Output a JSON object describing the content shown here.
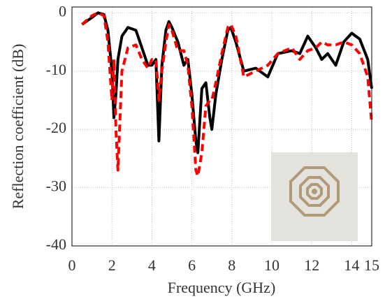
{
  "chart_data": {
    "type": "line",
    "xlabel": "Frequency (GHz)",
    "ylabel": "Reflection coefficient (dB)",
    "x": [
      0.5,
      1.0,
      1.3,
      1.6,
      1.8,
      2.0,
      2.1,
      2.2,
      2.3,
      2.5,
      2.8,
      3.2,
      3.5,
      3.8,
      4.0,
      4.2,
      4.35,
      4.5,
      4.7,
      4.85,
      5.0,
      5.3,
      5.6,
      5.8,
      6.0,
      6.2,
      6.3,
      6.5,
      6.7,
      6.9,
      7.0,
      7.2,
      7.5,
      7.8,
      7.95,
      8.2,
      8.6,
      9.2,
      9.8,
      10.3,
      11.0,
      11.4,
      11.8,
      12.2,
      12.5,
      12.8,
      13.2,
      13.6,
      14.0,
      14.4,
      14.8,
      15
    ],
    "series": [
      {
        "color": "#000000",
        "line_style": "solid",
        "values": [
          -2,
          -0.8,
          0,
          -0.3,
          -3,
          -10,
          -18,
          -14,
          -8,
          -4,
          -2.5,
          -3,
          -6,
          -9,
          -9,
          -8,
          -22,
          -9,
          -3,
          -1.5,
          -2.5,
          -5,
          -9,
          -8,
          -14,
          -22,
          -24,
          -13,
          -12,
          -18,
          -20,
          -14,
          -8,
          -3,
          -2.5,
          -5,
          -10,
          -9.5,
          -11,
          -7,
          -6.5,
          -7,
          -4,
          -6,
          -8,
          -7,
          -9,
          -5,
          -3.5,
          -4.5,
          -8,
          -13
        ]
      },
      {
        "color": "#ff0000",
        "line_style": "dashed",
        "values": [
          -2,
          -0.5,
          0,
          -0.5,
          -5,
          -15,
          -8,
          -20,
          -27,
          -10,
          -6,
          -5.5,
          -8,
          -9.5,
          -8,
          -8,
          -15,
          -10,
          -5,
          -2,
          -3,
          -6.5,
          -6.5,
          -9,
          -16,
          -27,
          -28,
          -24,
          -16,
          -15,
          -15,
          -12,
          -7,
          -2.5,
          -2,
          -4,
          -11,
          -10,
          -9,
          -7,
          -6,
          -8,
          -6.5,
          -6,
          -5,
          -5.5,
          -5.5,
          -5,
          -5.5,
          -7,
          -11,
          -19
        ]
      }
    ],
    "xlim": [
      0,
      15
    ],
    "xticks": [
      0,
      2,
      4,
      6,
      8,
      10,
      12,
      14,
      15
    ],
    "ylim": [
      -40,
      1
    ],
    "yticks": [
      0,
      -10,
      -20,
      -30,
      -40
    ],
    "grid": true
  }
}
